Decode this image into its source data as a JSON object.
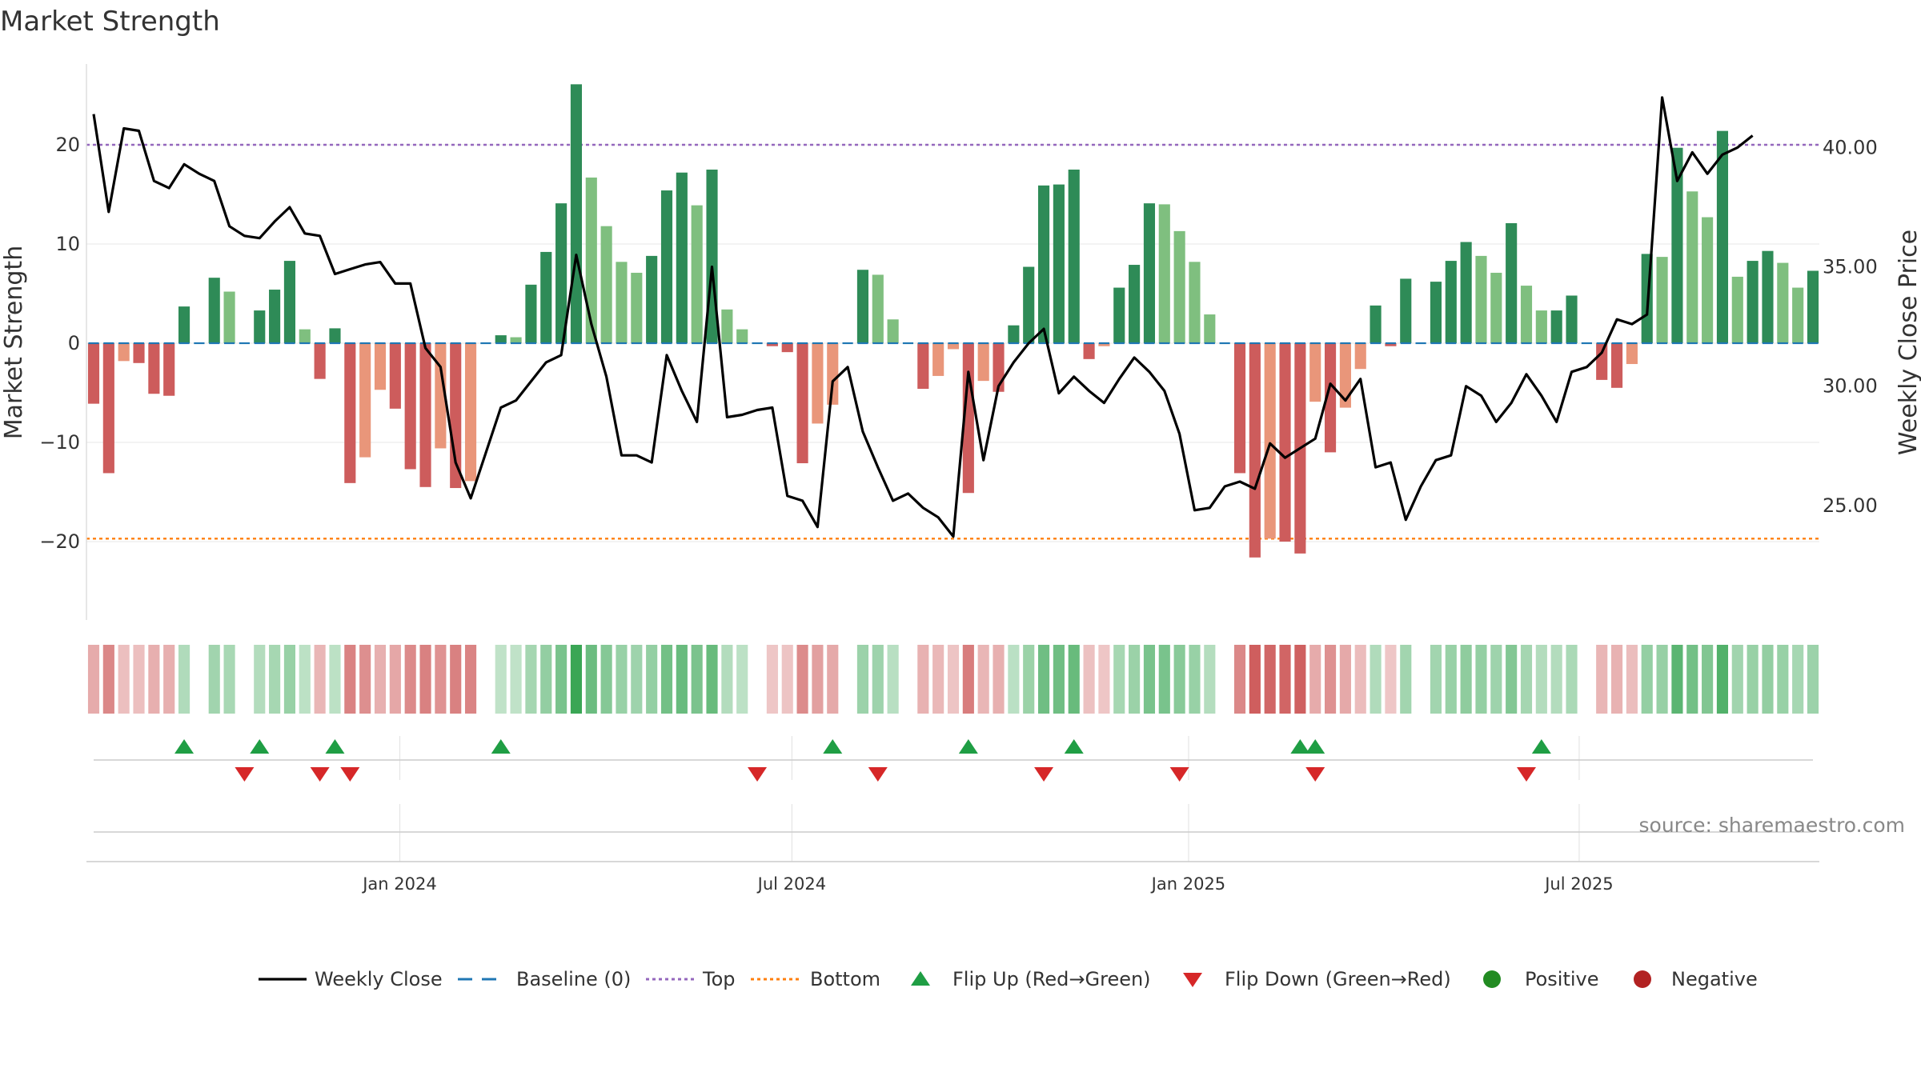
{
  "chart_data": {
    "type": "bar",
    "title": "Market Strength",
    "ylabel_left": "Market Strength",
    "ylabel_right": "Weekly Close Price",
    "left_ylim": [
      -28,
      28
    ],
    "left_ticks": [
      "20",
      "10",
      "0",
      "−10",
      "−20"
    ],
    "left_tick_values": [
      20,
      10,
      0,
      -10,
      -20
    ],
    "right_ylim": [
      20.2,
      43.5
    ],
    "right_ticks": [
      "40.00",
      "35.00",
      "30.00",
      "25.00"
    ],
    "right_tick_values": [
      40,
      35,
      30,
      25
    ],
    "top_threshold": 20,
    "bottom_threshold": -19.7,
    "baseline": 0,
    "x_tick_labels": [
      "Jan 2024",
      "Jul 2024",
      "Jan 2025",
      "Jul 2025"
    ],
    "x_tick_indices": [
      20.3,
      46.3,
      72.6,
      98.5
    ],
    "strength": [
      -6.1,
      -13.1,
      -1.8,
      -2.0,
      -5.1,
      -5.3,
      3.7,
      0,
      6.6,
      5.2,
      0,
      3.3,
      5.4,
      8.3,
      1.4,
      -3.6,
      1.5,
      -14.1,
      -11.5,
      -4.7,
      -6.6,
      -12.7,
      -14.5,
      -10.6,
      -14.6,
      -13.9,
      0,
      0.8,
      0.6,
      5.9,
      9.2,
      14.1,
      26.1,
      16.7,
      11.8,
      8.2,
      7.1,
      8.8,
      15.4,
      17.2,
      13.9,
      17.5,
      3.4,
      1.4,
      0,
      -0.3,
      -0.9,
      -12.1,
      -8.1,
      -6.2,
      0,
      7.4,
      6.9,
      2.4,
      0,
      -4.6,
      -3.3,
      -0.6,
      -15.1,
      -3.8,
      -4.9,
      1.8,
      7.7,
      15.9,
      16.0,
      17.5,
      -1.6,
      -0.3,
      5.6,
      7.9,
      14.1,
      14.0,
      11.3,
      8.2,
      2.9,
      0,
      -13.1,
      -21.6,
      -19.7,
      -20.0,
      -21.2,
      -5.9,
      -11.0,
      -6.5,
      -2.6,
      3.8,
      -0.3,
      6.5,
      0,
      6.2,
      8.3,
      10.2,
      8.8,
      7.1,
      12.1,
      5.8,
      3.3,
      3.3,
      4.8,
      0,
      -3.7,
      -4.5,
      -2.1,
      9.0,
      8.7,
      19.7,
      15.3,
      12.7,
      21.4,
      6.7,
      8.3,
      9.3,
      8.1,
      5.6,
      7.3
    ],
    "weekly_close": [
      41.4,
      37.3,
      40.8,
      40.7,
      38.6,
      38.3,
      39.3,
      38.9,
      38.6,
      36.7,
      36.3,
      36.2,
      36.9,
      37.5,
      36.4,
      36.3,
      34.7,
      34.9,
      35.1,
      35.2,
      34.3,
      34.3,
      31.6,
      30.8,
      26.8,
      25.3,
      27.2,
      29.1,
      29.4,
      30.2,
      31.0,
      31.3,
      35.5,
      32.6,
      30.4,
      27.1,
      27.1,
      26.8,
      31.3,
      29.8,
      28.5,
      35.0,
      28.7,
      28.8,
      29.0,
      29.1,
      25.4,
      25.2,
      24.1,
      30.2,
      30.8,
      28.1,
      26.6,
      25.2,
      25.5,
      24.9,
      24.5,
      23.7,
      30.6,
      26.9,
      30.0,
      31.0,
      31.8,
      32.4,
      29.7,
      30.4,
      29.8,
      29.3,
      30.3,
      31.2,
      30.6,
      29.8,
      28.0,
      24.8,
      24.9,
      25.8,
      26.0,
      25.7,
      27.6,
      27.0,
      27.4,
      27.8,
      30.1,
      29.4,
      30.3,
      26.6,
      26.8,
      24.4,
      25.8,
      26.9,
      27.1,
      30.0,
      29.6,
      28.5,
      29.3,
      30.5,
      29.6,
      28.5,
      30.6,
      30.8,
      31.4,
      32.8,
      32.6,
      33.0,
      42.1,
      38.6,
      39.8,
      38.9,
      39.7,
      40.0,
      40.5
    ],
    "flips_up_indices": [
      6,
      11,
      16,
      27,
      49,
      58,
      65,
      80,
      81,
      96
    ],
    "flips_down_indices": [
      10,
      15,
      17,
      44,
      52,
      63,
      72,
      81,
      95
    ],
    "legend": [
      "Weekly Close",
      "Baseline (0)",
      "Top",
      "Bottom",
      "Flip Up (Red→Green)",
      "Flip Down (Green→Red)",
      "Positive",
      "Negative"
    ],
    "source": "source: sharemaestro.com"
  },
  "colors": {
    "strong_pos": "#2e8b57",
    "weak_pos": "#7fbf7f",
    "strong_neg": "#cd5c5c",
    "weak_neg": "#e9967a",
    "close_line": "#000000",
    "baseline": "#1f77b4",
    "top": "#9467bd",
    "bottom": "#ff7f0e",
    "flip_up": "#1f9e44",
    "flip_down": "#d62728",
    "positive": "#228b22",
    "negative": "#b22222"
  }
}
